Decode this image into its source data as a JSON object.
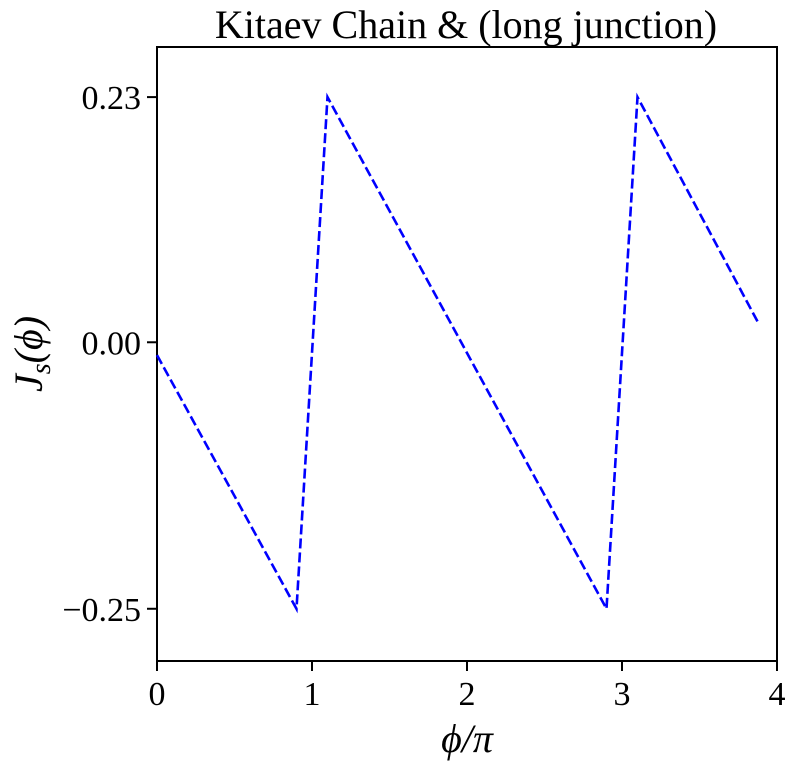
{
  "chart_data": {
    "type": "line",
    "title": "Kitaev Chain & (long junction)",
    "xlabel": "ϕ/π",
    "ylabel": "J_s(ϕ)",
    "xlim": [
      0,
      4
    ],
    "ylim": [
      -0.299,
      0.277
    ],
    "x_ticks": [
      0,
      1,
      2,
      3,
      4
    ],
    "x_tick_labels": [
      "0",
      "1",
      "2",
      "3",
      "4"
    ],
    "y_ticks": [
      -0.25,
      0.0,
      0.23
    ],
    "y_tick_labels": [
      "−0.25",
      "0.00",
      "0.23"
    ],
    "grid": false,
    "series": [
      {
        "style": "dashed",
        "color": "#0000ff",
        "x": [
          0.0,
          0.9,
          1.1,
          2.9,
          3.1,
          3.88
        ],
        "y": [
          -0.012,
          -0.25,
          0.23,
          -0.25,
          0.23,
          0.018
        ]
      }
    ]
  }
}
